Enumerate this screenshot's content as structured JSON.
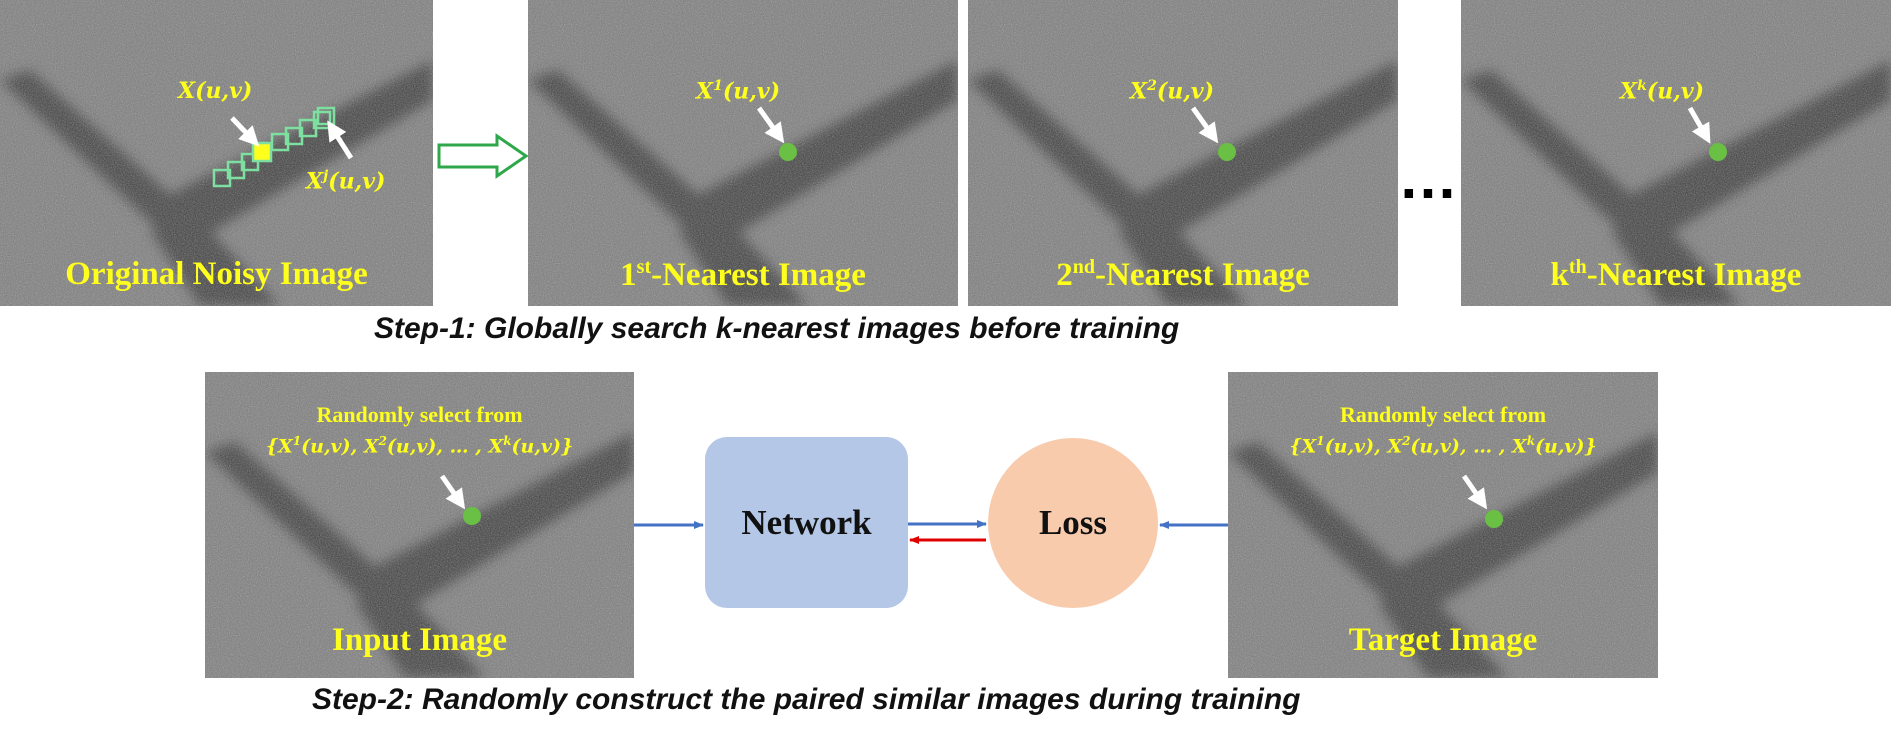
{
  "panels": {
    "original": {
      "label": "Original Noisy Image",
      "x_uv": "X(u,v)",
      "xj_base": "X",
      "xj_sup": "j",
      "xj_tail": "(u,v)"
    },
    "nearest1": {
      "label_pre": "1",
      "label_sup": "st",
      "label_post": "-Nearest Image",
      "x_base": "X",
      "x_sup": "1",
      "x_tail": "(u,v)"
    },
    "nearest2": {
      "label_pre": "2",
      "label_sup": "nd",
      "label_post": "-Nearest Image",
      "x_base": "X",
      "x_sup": "2",
      "x_tail": "(u,v)"
    },
    "nearestk": {
      "label_pre": "k",
      "label_sup": "th",
      "label_post": "-Nearest Image",
      "x_base": "X",
      "x_sup": "k",
      "x_tail": "(u,v)"
    },
    "input": {
      "label": "Input Image",
      "select_text": "Randomly select from"
    },
    "target": {
      "label": "Target Image",
      "select_text": "Randomly select from"
    }
  },
  "set_notation": {
    "open": "{X",
    "sup1": "1",
    "mid1": "(u,v), X",
    "sup2": "2",
    "mid2": "(u,v), … , X",
    "supk": "k",
    "close": "(u,v)}"
  },
  "ellipsis": "…",
  "network_label": "Network",
  "loss_label": "Loss",
  "steps": {
    "step1": "Step-1:  Globally search k-nearest images before training",
    "step2": "Step-2:  Randomly construct the paired similar images during training"
  },
  "colors": {
    "label_yellow": "#ffff1e",
    "patch_green": "#7ee0a0",
    "point_green": "#6abf45",
    "arrow_blue": "#4472c4",
    "arrow_red": "#e00000",
    "network_fill": "#b4c7e7",
    "loss_fill": "#f8cbad",
    "hollow_arrow": "#2ea84a"
  }
}
